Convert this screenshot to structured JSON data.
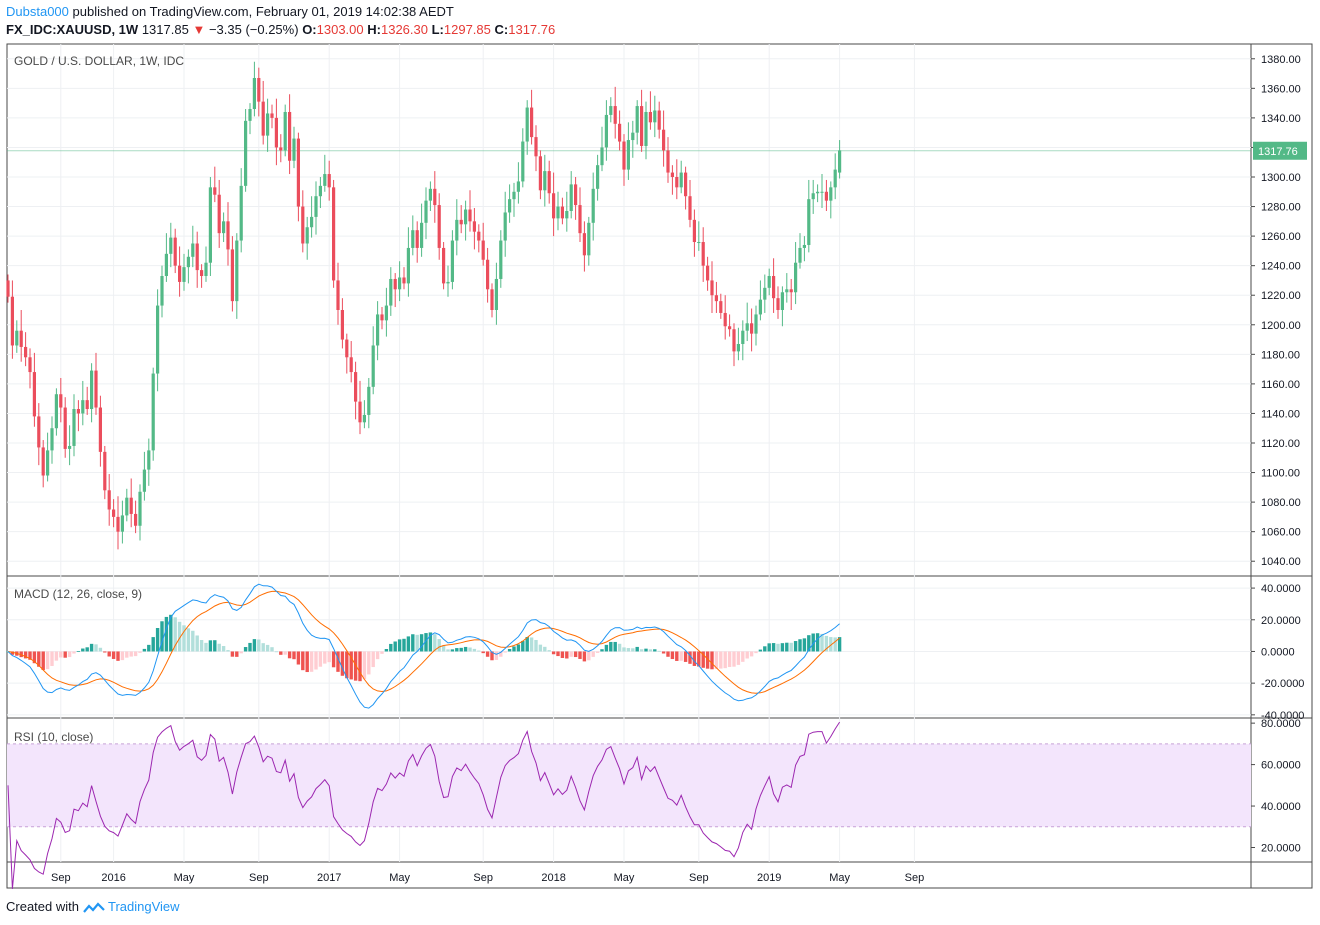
{
  "header": {
    "author": "Dubsta000",
    "published_text": "published on TradingView.com, February 01, 2019 14:02:38 AEDT",
    "symbol": "FX_IDC:XAUUSD, 1W",
    "last": "1317.85",
    "change": "−3.35 (−0.25%)",
    "o_label": "O:",
    "o_value": "1303.00",
    "h_label": "H:",
    "h_value": "1326.30",
    "l_label": "L:",
    "l_value": "1297.85",
    "c_label": "C:",
    "c_value": "1317.76"
  },
  "footer": {
    "created_with": "Created with",
    "brand": "TradingView"
  },
  "colors": {
    "up": "#53b987",
    "down": "#eb4d5c",
    "macd_line": "#2196f3",
    "signal_line": "#ff6d00",
    "hist_up_strong": "#26a69a",
    "hist_up_weak": "#b2dfdb",
    "hist_down_strong": "#ef5350",
    "hist_down_weak": "#ffcdd2",
    "rsi_line": "#9c27b0",
    "rsi_band": "#f3e5fc",
    "grid": "#eef0f3",
    "last_price_label": "#53b987"
  },
  "chart_data": [
    {
      "type": "candlestick",
      "title": "GOLD / U.S. DOLLAR, 1W, IDC",
      "ylim": [
        1030,
        1390
      ],
      "yticks": [
        "1040.00",
        "1060.00",
        "1080.00",
        "1100.00",
        "1120.00",
        "1140.00",
        "1160.00",
        "1180.00",
        "1200.00",
        "1220.00",
        "1240.00",
        "1260.00",
        "1280.00",
        "1300.00",
        "1320.00",
        "1340.00",
        "1360.00",
        "1380.00"
      ],
      "last_price_label": "1317.76",
      "x_tick_labels": [
        "Sep",
        "2016",
        "May",
        "Sep",
        "2017",
        "May",
        "Sep",
        "2018",
        "May",
        "Sep",
        "2019",
        "May",
        "Sep"
      ],
      "x_tick_week_index": [
        12,
        24,
        40,
        57,
        73,
        89,
        108,
        124,
        140,
        157,
        173,
        189,
        206
      ],
      "closes": [
        1219,
        1186,
        1196,
        1185,
        1178,
        1168,
        1138,
        1117,
        1098,
        1115,
        1130,
        1153,
        1144,
        1116,
        1118,
        1143,
        1140,
        1149,
        1143,
        1169,
        1144,
        1114,
        1088,
        1075,
        1070,
        1060,
        1071,
        1083,
        1072,
        1064,
        1087,
        1102,
        1115,
        1167,
        1213,
        1233,
        1248,
        1259,
        1240,
        1229,
        1239,
        1246,
        1255,
        1237,
        1233,
        1242,
        1293,
        1288,
        1262,
        1270,
        1251,
        1216,
        1257,
        1294,
        1338,
        1346,
        1367,
        1351,
        1328,
        1343,
        1340,
        1320,
        1318,
        1344,
        1311,
        1326,
        1280,
        1255,
        1266,
        1273,
        1287,
        1294,
        1302,
        1293,
        1230,
        1210,
        1190,
        1178,
        1168,
        1148,
        1134,
        1139,
        1158,
        1186,
        1207,
        1203,
        1213,
        1231,
        1224,
        1232,
        1228,
        1252,
        1264,
        1252,
        1269,
        1284,
        1292,
        1281,
        1252,
        1228,
        1229,
        1257,
        1271,
        1268,
        1278,
        1270,
        1263,
        1257,
        1244,
        1224,
        1210,
        1231,
        1257,
        1276,
        1285,
        1290,
        1297,
        1324,
        1347,
        1327,
        1314,
        1291,
        1304,
        1289,
        1272,
        1280,
        1272,
        1277,
        1295,
        1281,
        1262,
        1247,
        1269,
        1292,
        1308,
        1320,
        1342,
        1348,
        1336,
        1324,
        1305,
        1325,
        1330,
        1348,
        1321,
        1344,
        1337,
        1345,
        1332,
        1318,
        1303,
        1300,
        1293,
        1303,
        1287,
        1271,
        1256,
        1256,
        1240,
        1230,
        1220,
        1216,
        1208,
        1199,
        1197,
        1182,
        1187,
        1196,
        1201,
        1194,
        1207,
        1217,
        1225,
        1233,
        1218,
        1210,
        1222,
        1224,
        1222,
        1242,
        1252,
        1254,
        1285,
        1289,
        1290,
        1290,
        1284,
        1293,
        1305,
        1318
      ],
      "opens": [
        1230,
        1219,
        1186,
        1196,
        1185,
        1178,
        1168,
        1138,
        1117,
        1098,
        1115,
        1130,
        1153,
        1144,
        1116,
        1118,
        1143,
        1140,
        1149,
        1143,
        1169,
        1144,
        1114,
        1088,
        1075,
        1070,
        1060,
        1071,
        1083,
        1072,
        1064,
        1087,
        1102,
        1115,
        1167,
        1213,
        1233,
        1248,
        1259,
        1240,
        1229,
        1239,
        1246,
        1255,
        1237,
        1233,
        1242,
        1293,
        1288,
        1262,
        1270,
        1251,
        1216,
        1257,
        1294,
        1338,
        1346,
        1367,
        1351,
        1328,
        1343,
        1340,
        1320,
        1318,
        1344,
        1311,
        1326,
        1280,
        1255,
        1266,
        1273,
        1287,
        1294,
        1302,
        1293,
        1230,
        1210,
        1190,
        1178,
        1168,
        1148,
        1134,
        1139,
        1158,
        1186,
        1207,
        1203,
        1213,
        1231,
        1224,
        1232,
        1228,
        1252,
        1264,
        1252,
        1269,
        1284,
        1292,
        1281,
        1252,
        1228,
        1229,
        1257,
        1271,
        1268,
        1278,
        1270,
        1263,
        1257,
        1244,
        1224,
        1210,
        1231,
        1257,
        1276,
        1285,
        1290,
        1297,
        1324,
        1347,
        1327,
        1314,
        1291,
        1304,
        1289,
        1272,
        1280,
        1272,
        1277,
        1295,
        1281,
        1262,
        1247,
        1269,
        1292,
        1308,
        1320,
        1342,
        1348,
        1336,
        1324,
        1305,
        1325,
        1330,
        1348,
        1321,
        1344,
        1337,
        1345,
        1332,
        1318,
        1303,
        1300,
        1293,
        1303,
        1287,
        1271,
        1256,
        1256,
        1240,
        1230,
        1220,
        1216,
        1208,
        1199,
        1197,
        1182,
        1187,
        1196,
        1201,
        1194,
        1207,
        1217,
        1225,
        1233,
        1218,
        1210,
        1222,
        1224,
        1222,
        1242,
        1252,
        1254,
        1285,
        1289,
        1290,
        1290,
        1284,
        1293,
        1303
      ]
    },
    {
      "type": "line",
      "title": "MACD (12, 26, close, 9)",
      "ylim": [
        -42,
        47
      ],
      "yticks": [
        "-40.0000",
        "-20.0000",
        "0.0000",
        "20.0000",
        "40.0000"
      ],
      "series": [
        {
          "name": "MACD",
          "color": "#2196f3"
        },
        {
          "name": "Signal",
          "color": "#ff6d00"
        },
        {
          "name": "Histogram",
          "type": "bar"
        }
      ]
    },
    {
      "type": "line",
      "title": "RSI (10, close)",
      "ylim": [
        13,
        82
      ],
      "yticks": [
        "20.0000",
        "40.0000",
        "60.0000",
        "80.0000"
      ],
      "band": [
        30,
        70
      ],
      "series": [
        {
          "name": "RSI",
          "color": "#9c27b0"
        }
      ]
    }
  ]
}
